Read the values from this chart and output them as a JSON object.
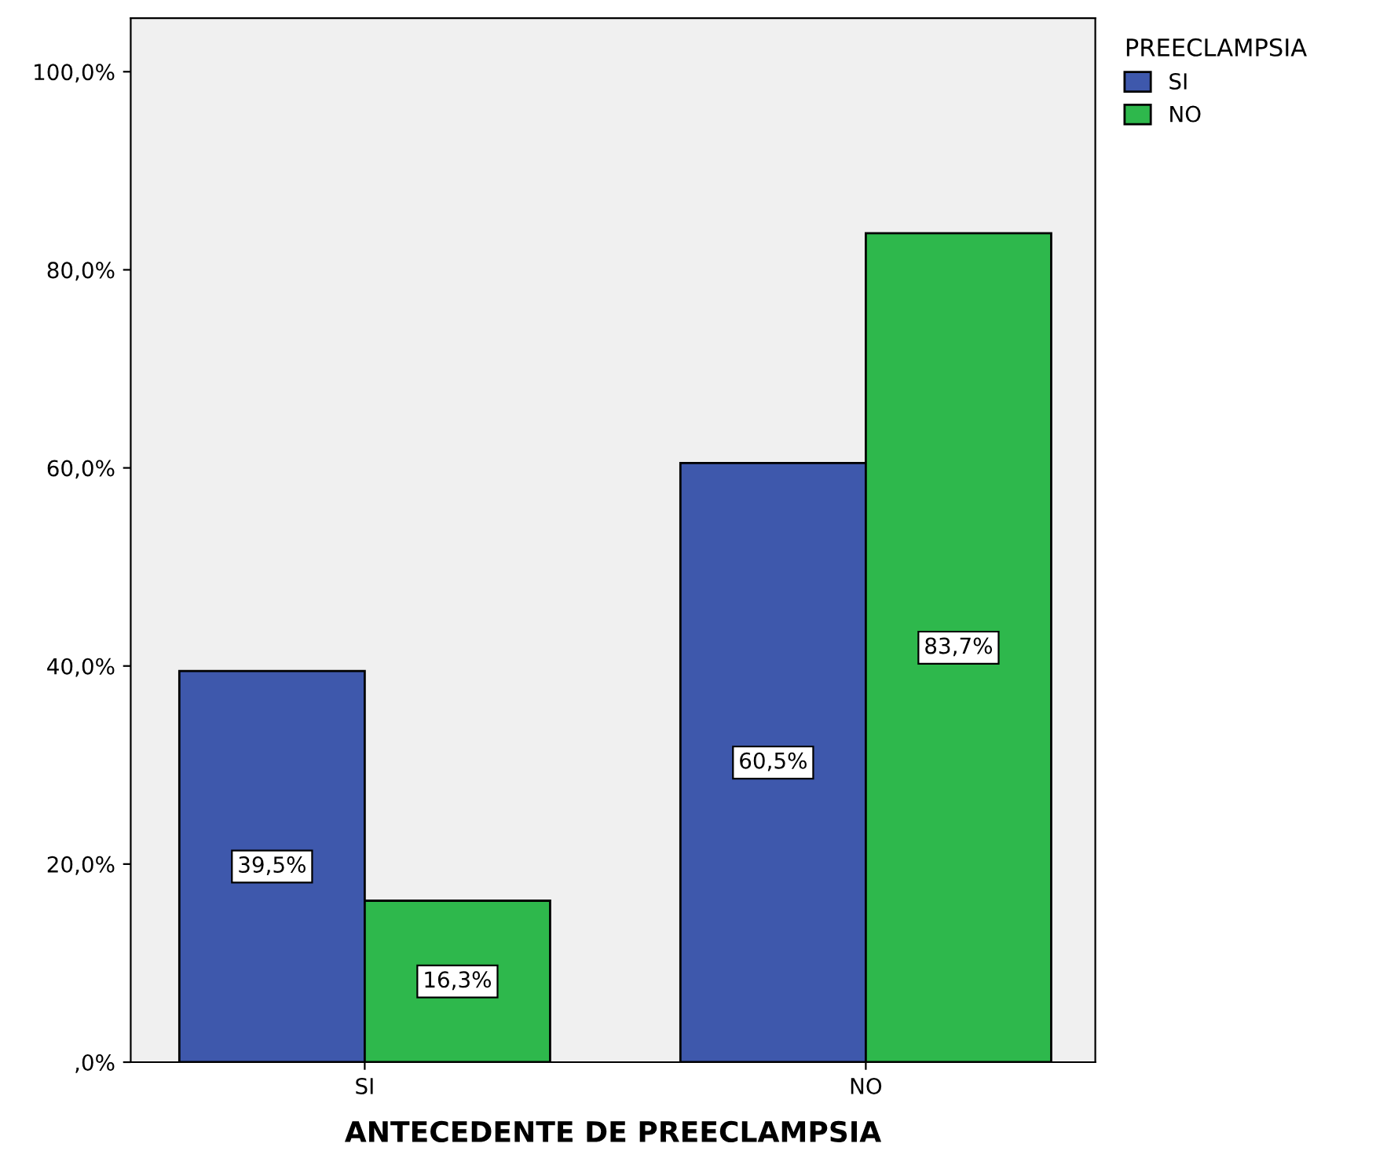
{
  "chart_data": {
    "type": "bar",
    "xlabel": "ANTECEDENTE DE PREECLAMPSIA",
    "legend_title": "PREECLAMPSIA",
    "legend": "top right",
    "categories": [
      "SI",
      "NO"
    ],
    "series": [
      {
        "name": "SI",
        "color": "#3e58ac",
        "values": [
          39.5,
          60.5
        ],
        "value_labels": [
          "39,5%",
          "60,5%"
        ]
      },
      {
        "name": "NO",
        "color": "#2eb84c",
        "values": [
          16.3,
          83.7
        ],
        "value_labels": [
          "16,3%",
          "83,7%"
        ]
      }
    ],
    "ylim": [
      0,
      105.4
    ],
    "yticks": [
      {
        "value": 0,
        "label": ",0%"
      },
      {
        "value": 20,
        "label": "20,0%"
      },
      {
        "value": 40,
        "label": "40,0%"
      },
      {
        "value": 60,
        "label": "60,0%"
      },
      {
        "value": 80,
        "label": "80,0%"
      },
      {
        "value": 100,
        "label": "100,0%"
      }
    ],
    "grid": false
  }
}
